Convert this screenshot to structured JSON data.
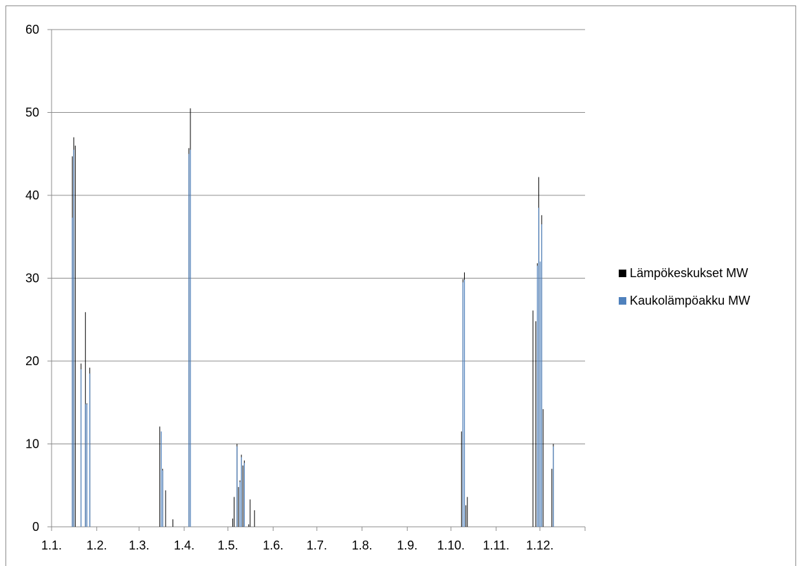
{
  "chart_data": {
    "type": "bar",
    "y_ticks": [
      "0",
      "10",
      "20",
      "30",
      "40",
      "50",
      "60"
    ],
    "ylim": [
      0,
      60
    ],
    "x_tick_labels": [
      "1.1.",
      "1.2.",
      "1.3.",
      "1.4.",
      "1.5.",
      "1.6.",
      "1.7.",
      "1.8.",
      "1.9.",
      "1.10.",
      "1.11.",
      "1.12."
    ],
    "grid": true,
    "legend_position": "right",
    "series": [
      {
        "name": "Lämpökeskukset MW",
        "color": "#000000",
        "points": [
          {
            "x": "2016-01-15",
            "y": 44.7
          },
          {
            "x": "2016-01-16",
            "y": 47.0
          },
          {
            "x": "2016-01-17",
            "y": 46.0
          },
          {
            "x": "2016-01-21",
            "y": 19.7
          },
          {
            "x": "2016-01-24",
            "y": 25.9
          },
          {
            "x": "2016-01-25",
            "y": 14.9
          },
          {
            "x": "2016-01-27",
            "y": 19.2
          },
          {
            "x": "2016-03-15",
            "y": 12.1
          },
          {
            "x": "2016-03-17",
            "y": 7.0
          },
          {
            "x": "2016-03-19",
            "y": 4.4
          },
          {
            "x": "2016-03-24",
            "y": 0.9
          },
          {
            "x": "2016-04-04",
            "y": 45.7
          },
          {
            "x": "2016-04-05",
            "y": 50.5
          },
          {
            "x": "2016-05-04",
            "y": 1.0
          },
          {
            "x": "2016-05-05",
            "y": 3.6
          },
          {
            "x": "2016-05-07",
            "y": 10.0
          },
          {
            "x": "2016-05-08",
            "y": 4.8
          },
          {
            "x": "2016-05-09",
            "y": 5.6
          },
          {
            "x": "2016-05-10",
            "y": 8.7
          },
          {
            "x": "2016-05-11",
            "y": 7.4
          },
          {
            "x": "2016-05-12",
            "y": 8.0
          },
          {
            "x": "2016-05-15",
            "y": 0.3
          },
          {
            "x": "2016-05-16",
            "y": 3.3
          },
          {
            "x": "2016-05-19",
            "y": 2.0
          },
          {
            "x": "2016-10-08",
            "y": 11.5
          },
          {
            "x": "2016-10-09",
            "y": 29.9
          },
          {
            "x": "2016-10-10",
            "y": 30.7
          },
          {
            "x": "2016-10-11",
            "y": 2.6
          },
          {
            "x": "2016-10-12",
            "y": 3.6
          },
          {
            "x": "2016-11-26",
            "y": 26.1
          },
          {
            "x": "2016-11-28",
            "y": 24.8
          },
          {
            "x": "2016-11-29",
            "y": 31.8
          },
          {
            "x": "2016-11-30",
            "y": 42.2
          },
          {
            "x": "2016-12-02",
            "y": 37.6
          },
          {
            "x": "2016-12-03",
            "y": 14.2
          },
          {
            "x": "2016-12-09",
            "y": 7.0
          },
          {
            "x": "2016-12-10",
            "y": 10.0
          }
        ]
      },
      {
        "name": "Kaukolämpöakku MW",
        "color": "#4f81bd",
        "points": [
          {
            "x": "2016-01-15",
            "y": 37.3
          },
          {
            "x": "2016-01-16",
            "y": 45.5
          },
          {
            "x": "2016-01-21",
            "y": 19.0
          },
          {
            "x": "2016-01-24",
            "y": 14.8
          },
          {
            "x": "2016-01-25",
            "y": 14.8
          },
          {
            "x": "2016-01-27",
            "y": 18.5
          },
          {
            "x": "2016-03-16",
            "y": 11.5
          },
          {
            "x": "2016-03-17",
            "y": 6.8
          },
          {
            "x": "2016-04-04",
            "y": 45.0
          },
          {
            "x": "2016-04-05",
            "y": 45.5
          },
          {
            "x": "2016-05-07",
            "y": 9.7
          },
          {
            "x": "2016-05-09",
            "y": 5.4
          },
          {
            "x": "2016-05-10",
            "y": 8.4
          },
          {
            "x": "2016-05-12",
            "y": 7.7
          },
          {
            "x": "2016-10-09",
            "y": 29.5
          },
          {
            "x": "2016-10-10",
            "y": 29.8
          },
          {
            "x": "2016-11-29",
            "y": 31.5
          },
          {
            "x": "2016-11-30",
            "y": 38.5
          },
          {
            "x": "2016-12-01",
            "y": 32.0
          },
          {
            "x": "2016-12-02",
            "y": 36.5
          },
          {
            "x": "2016-12-10",
            "y": 9.7
          }
        ]
      }
    ]
  }
}
